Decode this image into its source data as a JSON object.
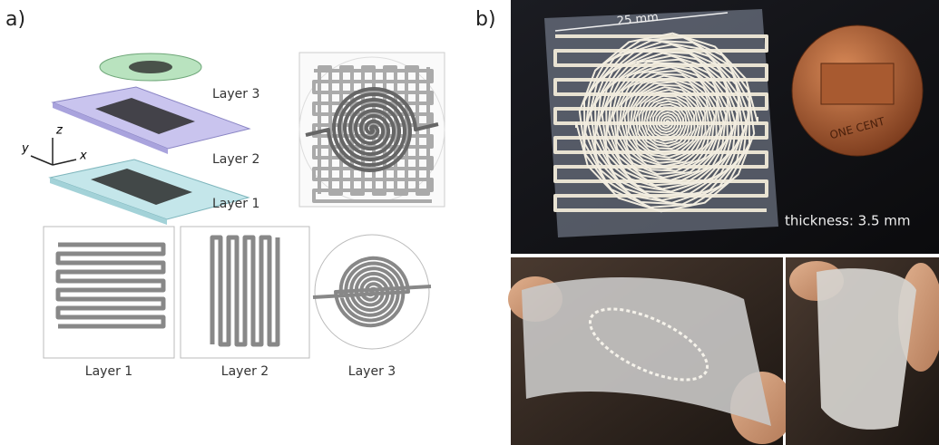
{
  "panel_a": {
    "label": "a)",
    "exploded_labels": [
      "Layer 3",
      "Layer 2",
      "Layer 1"
    ],
    "axes": {
      "z": "z",
      "y": "y",
      "x": "x"
    },
    "top_view_labels": [
      "Layer 1",
      "Layer 2",
      "Layer 3"
    ]
  },
  "panel_b": {
    "label": "b)",
    "dimension": "25 mm",
    "thickness": "thickness: 3.5 mm",
    "coin_text": "ONE CENT"
  }
}
